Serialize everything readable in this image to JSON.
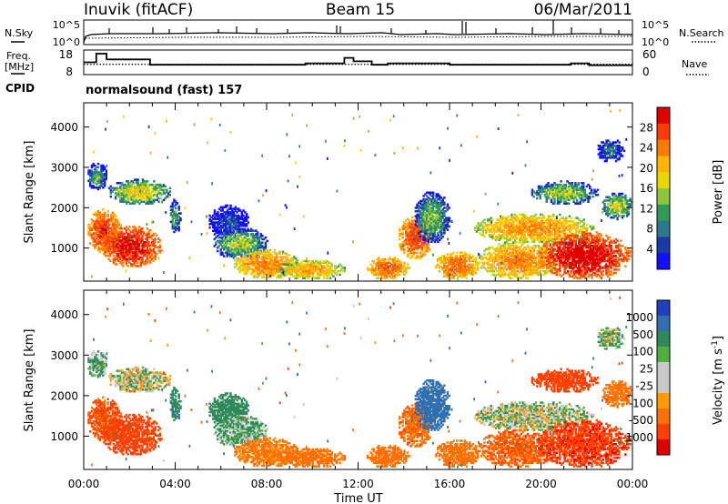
{
  "header": {
    "station": "Inuvik (fitACF)",
    "beam": "Beam 15",
    "date": "06/Mar/2011"
  },
  "status_panels": {
    "nsky_label": "N.Sky",
    "nsearch_label": "N.Search",
    "noise_ticks_left": [
      "10^5",
      "10^0"
    ],
    "noise_ticks_right": [
      "10^5",
      "10^0"
    ],
    "freq_label_line1": "Freq.",
    "freq_label_line2": "[MHz]",
    "freq_ticks": [
      "18",
      "8"
    ],
    "nave_label": "Nave",
    "nave_ticks": [
      "60",
      "0"
    ],
    "cpid_label": "CPID",
    "cpid_text": "normalsound (fast) 157"
  },
  "chart_data": [
    {
      "type": "heatmap",
      "name": "power",
      "ylabel": "Slant Range [km]",
      "y_ticks": [
        1000,
        2000,
        3000,
        4000
      ],
      "ylim": [
        180,
        4600
      ],
      "x_ticks": [
        "00:00",
        "04:00",
        "08:00",
        "12:00",
        "16:00",
        "20:00",
        "00:00"
      ],
      "xlim_hours": [
        0,
        24
      ],
      "colorbar": {
        "label": "Power [dB]",
        "ticks": [
          "28",
          "24",
          "20",
          "16",
          "12",
          "8",
          "4"
        ],
        "colors": [
          "#e00000",
          "#ff3c00",
          "#ff7a00",
          "#ffb400",
          "#e8d800",
          "#8cc63c",
          "#2f9a5a",
          "#2d7a8a",
          "#1a3aa8",
          "#1010ff"
        ]
      }
    },
    {
      "type": "heatmap",
      "name": "velocity",
      "ylabel": "Slant Range [km]",
      "y_ticks": [
        1000,
        2000,
        3000,
        4000
      ],
      "ylim": [
        180,
        4600
      ],
      "x_ticks": [
        "00:00",
        "04:00",
        "08:00",
        "12:00",
        "16:00",
        "20:00",
        "00:00"
      ],
      "xlim_hours": [
        0,
        24
      ],
      "xlabel": "Time UT",
      "colorbar": {
        "label": "Velocity [m s^-1]",
        "ticks": [
          "1000",
          "500",
          "100",
          "25",
          "-25",
          "-100",
          "-500",
          "-1000"
        ],
        "colors": [
          "#2040c0",
          "#3070b0",
          "#2f8a5a",
          "#4fb040",
          "#c8c8c8",
          "#c8c8c8",
          "#ff9a00",
          "#ff7000",
          "#ff4000",
          "#e00000"
        ]
      }
    }
  ],
  "echo_regions": [
    {
      "t": [
        0.1,
        1.6
      ],
      "r": [
        850,
        1950
      ],
      "power": 27,
      "vel": -320
    },
    {
      "t": [
        0.7,
        3.4
      ],
      "r": [
        500,
        1550
      ],
      "power": 30,
      "vel": -420
    },
    {
      "t": [
        0.1,
        1.0
      ],
      "r": [
        2400,
        3100
      ],
      "power": 12,
      "vel": 60
    },
    {
      "t": [
        1.0,
        3.8
      ],
      "r": [
        2050,
        2700
      ],
      "power": 16,
      "vel": 5
    },
    {
      "t": [
        3.7,
        4.2
      ],
      "r": [
        1300,
        2200
      ],
      "power": 12,
      "vel": 250
    },
    {
      "t": [
        5.4,
        7.2
      ],
      "r": [
        1200,
        2050
      ],
      "power": 8,
      "vel": 150
    },
    {
      "t": [
        5.6,
        8.0
      ],
      "r": [
        700,
        1500
      ],
      "power": 14,
      "vel": 60
    },
    {
      "t": [
        6.5,
        9.4
      ],
      "r": [
        220,
        950
      ],
      "power": 22,
      "vel": -110
    },
    {
      "t": [
        8.5,
        11.4
      ],
      "r": [
        200,
        700
      ],
      "power": 20,
      "vel": -150
    },
    {
      "t": [
        12.3,
        14.2
      ],
      "r": [
        200,
        780
      ],
      "power": 24,
      "vel": -200
    },
    {
      "t": [
        13.7,
        15.3
      ],
      "r": [
        700,
        1800
      ],
      "power": 26,
      "vel": -250
    },
    {
      "t": [
        14.4,
        16.0
      ],
      "r": [
        1100,
        2400
      ],
      "power": 13,
      "vel": 550
    },
    {
      "t": [
        15.3,
        17.3
      ],
      "r": [
        200,
        900
      ],
      "power": 24,
      "vel": -220
    },
    {
      "t": [
        17.0,
        22.3
      ],
      "r": [
        1100,
        1850
      ],
      "power": 21,
      "vel": 15
    },
    {
      "t": [
        17.2,
        20.7
      ],
      "r": [
        200,
        1150
      ],
      "power": 22,
      "vel": -280
    },
    {
      "t": [
        19.8,
        23.9
      ],
      "r": [
        200,
        1400
      ],
      "power": 31,
      "vel": -650
    },
    {
      "t": [
        19.5,
        22.5
      ],
      "r": [
        2050,
        2650
      ],
      "power": 14,
      "vel": -420
    },
    {
      "t": [
        22.6,
        24.0
      ],
      "r": [
        1700,
        2350
      ],
      "power": 15,
      "vel": -130
    },
    {
      "t": [
        22.4,
        23.6
      ],
      "r": [
        3100,
        3700
      ],
      "power": 10,
      "vel": 40
    }
  ],
  "freq_steps": [
    {
      "t": [
        0.0,
        0.55
      ],
      "mhz": 13.0
    },
    {
      "t": [
        0.55,
        1.0
      ],
      "mhz": 16.5
    },
    {
      "t": [
        1.0,
        2.9
      ],
      "mhz": 14.2
    },
    {
      "t": [
        2.9,
        9.7
      ],
      "mhz": 12.0
    },
    {
      "t": [
        9.7,
        11.4
      ],
      "mhz": 12.6
    },
    {
      "t": [
        11.4,
        11.8
      ],
      "mhz": 14.8
    },
    {
      "t": [
        11.8,
        12.6
      ],
      "mhz": 13.4
    },
    {
      "t": [
        12.6,
        13.3
      ],
      "mhz": 12.0
    },
    {
      "t": [
        13.3,
        16.0
      ],
      "mhz": 12.6
    },
    {
      "t": [
        16.0,
        21.3
      ],
      "mhz": 12.0
    },
    {
      "t": [
        21.3,
        22.1
      ],
      "mhz": 12.6
    },
    {
      "t": [
        22.1,
        24.0
      ],
      "mhz": 11.8
    }
  ],
  "nave_level": 25
}
